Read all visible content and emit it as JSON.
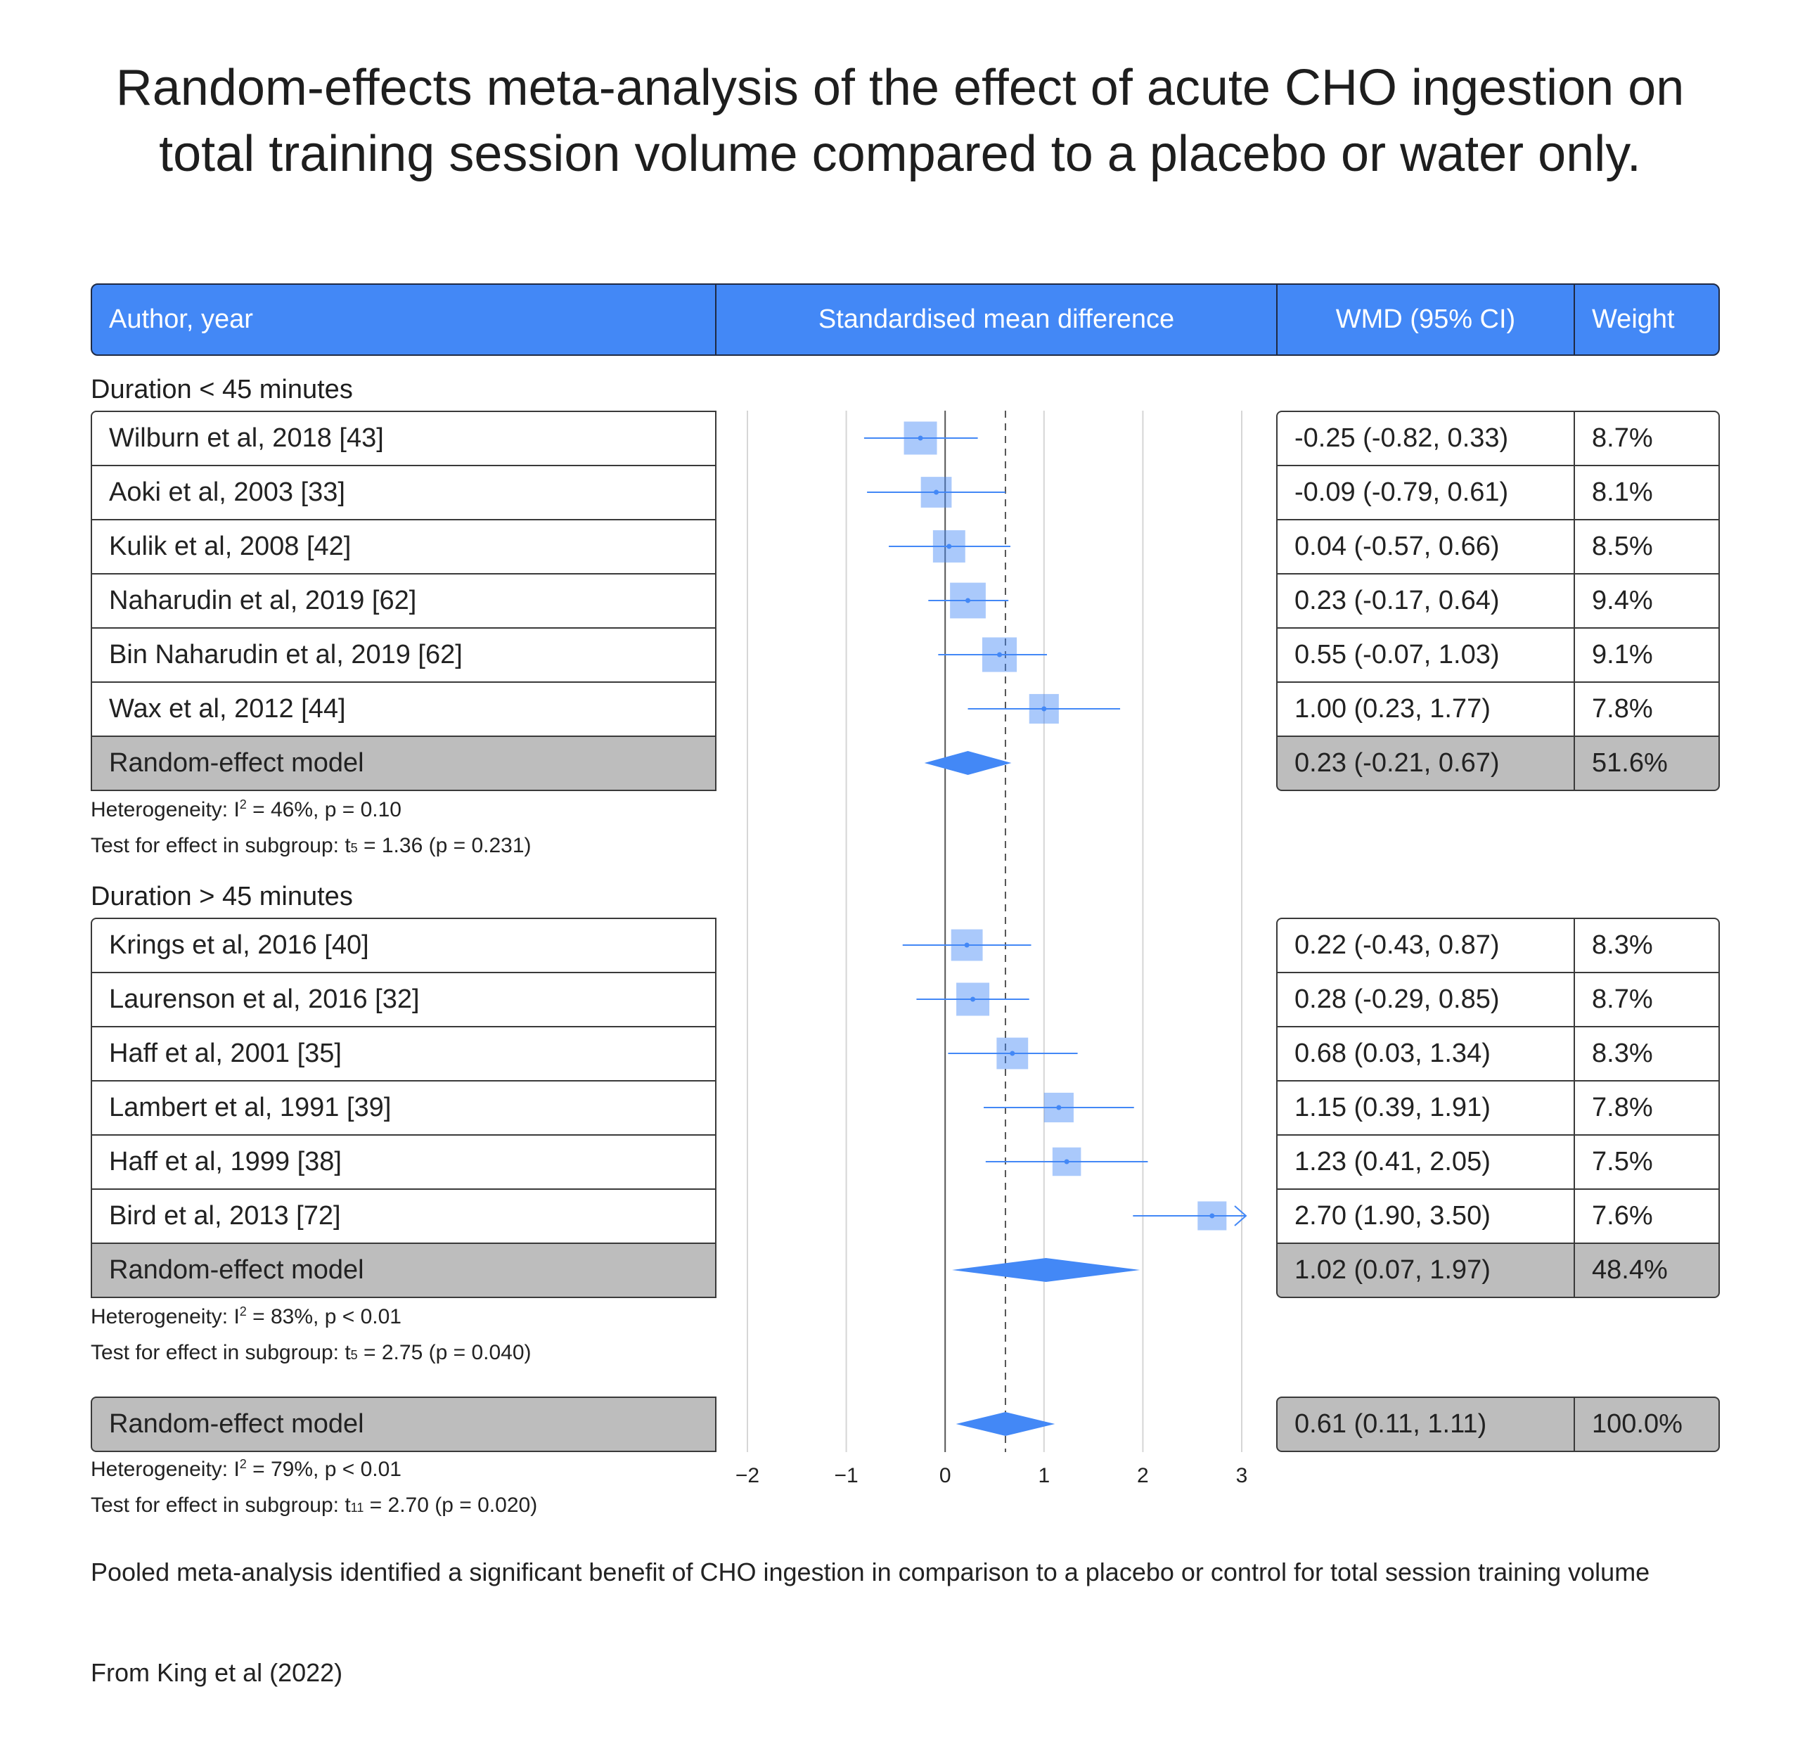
{
  "title": "Random-effects meta-analysis of the effect of acute CHO ingestion on total training session volume compared to a placebo or water only.",
  "header": {
    "author": "Author, year",
    "smd": "Standardised mean difference",
    "wmd": "WMD (95% CI)",
    "weight": "Weight"
  },
  "colors": {
    "header": "#4388f6",
    "marker": "#4388f6",
    "model_row": "#bdbdbd"
  },
  "groups": [
    {
      "label": "Duration < 45 minutes",
      "studies": [
        {
          "name": "Wilburn et al, 2018 [43]",
          "ci": "-0.25 (-0.82, 0.33)",
          "weight": "8.7%"
        },
        {
          "name": "Aoki et al, 2003 [33]",
          "ci": "-0.09 (-0.79, 0.61)",
          "weight": "8.1%"
        },
        {
          "name": "Kulik et al, 2008 [42]",
          "ci": "0.04 (-0.57, 0.66)",
          "weight": "8.5%"
        },
        {
          "name": "Naharudin et al, 2019 [62]",
          "ci": "0.23 (-0.17, 0.64)",
          "weight": "9.4%"
        },
        {
          "name": "Bin Naharudin et al, 2019 [62]",
          "ci": "0.55 (-0.07, 1.03)",
          "weight": "9.1%"
        },
        {
          "name": "Wax et al, 2012 [44]",
          "ci": "1.00 (0.23, 1.77)",
          "weight": "7.8%"
        }
      ],
      "model": {
        "name": "Random-effect model",
        "ci": "0.23 (-0.21, 0.67)",
        "weight": "51.6%"
      },
      "heterogeneity_pre": "Heterogeneity: I",
      "heterogeneity_post": " = 46%, p = 0.10",
      "test_pre": "Test for effect in subgroup: t",
      "test_sub": "5",
      "test_post": " = 1.36 (p = 0.231)"
    },
    {
      "label": "Duration > 45 minutes",
      "studies": [
        {
          "name": "Krings et al, 2016 [40]",
          "ci": "0.22 (-0.43, 0.87)",
          "weight": "8.3%"
        },
        {
          "name": "Laurenson et al, 2016 [32]",
          "ci": "0.28 (-0.29, 0.85)",
          "weight": "8.7%"
        },
        {
          "name": "Haff et al, 2001 [35]",
          "ci": "0.68 (0.03, 1.34)",
          "weight": "8.3%"
        },
        {
          "name": "Lambert et al, 1991 [39]",
          "ci": "1.15 (0.39, 1.91)",
          "weight": "7.8%"
        },
        {
          "name": "Haff et al, 1999 [38]",
          "ci": "1.23 (0.41, 2.05)",
          "weight": "7.5%"
        },
        {
          "name": "Bird et al, 2013 [72]",
          "ci": "2.70 (1.90, 3.50)",
          "weight": "7.6%"
        }
      ],
      "model": {
        "name": "Random-effect model",
        "ci": "1.02 (0.07, 1.97)",
        "weight": "48.4%"
      },
      "heterogeneity_pre": "Heterogeneity: I",
      "heterogeneity_post": " = 83%, p < 0.01",
      "test_pre": "Test for effect in subgroup: t",
      "test_sub": "5",
      "test_post": " = 2.75 (p = 0.040)"
    }
  ],
  "overall": {
    "name": "Random-effect model",
    "ci": "0.61 (0.11, 1.11)",
    "weight": "100.0%",
    "heterogeneity_pre": "Heterogeneity: I",
    "heterogeneity_post": " = 79%, p < 0.01",
    "test_pre": "Test for effect in subgroup: t",
    "test_sub": "11",
    "test_post": " = 2.70 (p = 0.020)"
  },
  "sup2": "2",
  "footer": {
    "conclusion": "Pooled meta-analysis identified a significant benefit of CHO ingestion in comparison to a placebo or control for total session training volume",
    "source": "From King et al (2022)"
  },
  "chart_data": {
    "type": "forest",
    "xlim": [
      -2,
      3
    ],
    "x_ticks": [
      "−2",
      "−1",
      "0",
      "1",
      "2",
      "3"
    ],
    "x_tick_values": [
      -2,
      -1,
      0,
      1,
      2,
      3
    ],
    "null_line": 0,
    "pooled_reference_line": 0.61,
    "series": [
      {
        "name": "Duration < 45 minutes",
        "studies": [
          {
            "estimate": -0.25,
            "lower": -0.82,
            "upper": 0.33,
            "weight": 8.7
          },
          {
            "estimate": -0.09,
            "lower": -0.79,
            "upper": 0.61,
            "weight": 8.1
          },
          {
            "estimate": 0.04,
            "lower": -0.57,
            "upper": 0.66,
            "weight": 8.5
          },
          {
            "estimate": 0.23,
            "lower": -0.17,
            "upper": 0.64,
            "weight": 9.4
          },
          {
            "estimate": 0.55,
            "lower": -0.07,
            "upper": 1.03,
            "weight": 9.1
          },
          {
            "estimate": 1.0,
            "lower": 0.23,
            "upper": 1.77,
            "weight": 7.8
          }
        ],
        "pooled": {
          "estimate": 0.23,
          "lower": -0.21,
          "upper": 0.67
        }
      },
      {
        "name": "Duration > 45 minutes",
        "studies": [
          {
            "estimate": 0.22,
            "lower": -0.43,
            "upper": 0.87,
            "weight": 8.3
          },
          {
            "estimate": 0.28,
            "lower": -0.29,
            "upper": 0.85,
            "weight": 8.7
          },
          {
            "estimate": 0.68,
            "lower": 0.03,
            "upper": 1.34,
            "weight": 8.3
          },
          {
            "estimate": 1.15,
            "lower": 0.39,
            "upper": 1.91,
            "weight": 7.8
          },
          {
            "estimate": 1.23,
            "lower": 0.41,
            "upper": 2.05,
            "weight": 7.5
          },
          {
            "estimate": 2.7,
            "lower": 1.9,
            "upper": 3.5,
            "weight": 7.6
          }
        ],
        "pooled": {
          "estimate": 1.02,
          "lower": 0.07,
          "upper": 1.97
        }
      }
    ],
    "overall": {
      "estimate": 0.61,
      "lower": 0.11,
      "upper": 1.11
    }
  }
}
